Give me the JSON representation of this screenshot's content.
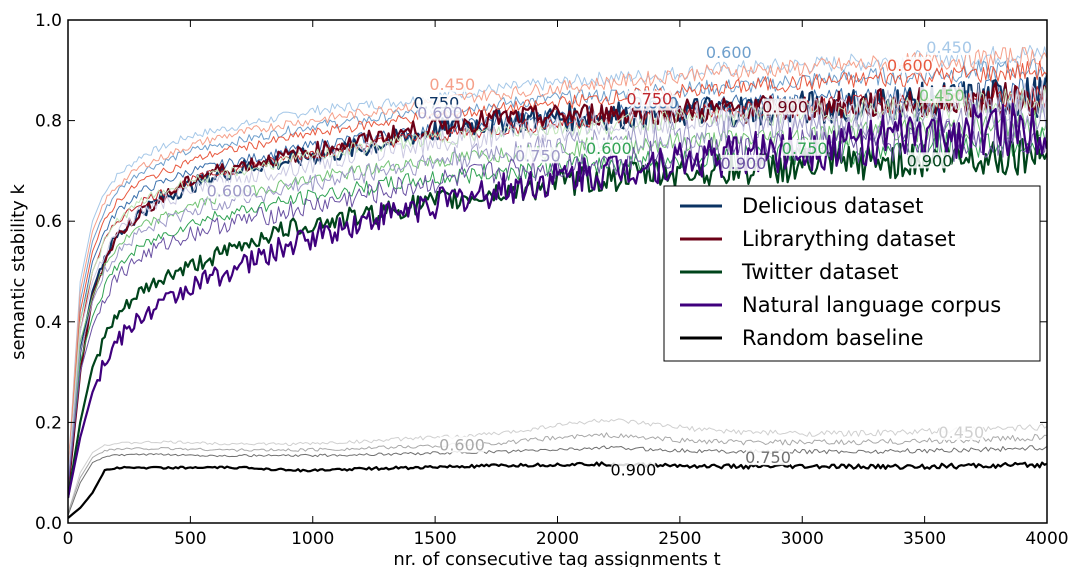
{
  "chart_data": {
    "type": "line",
    "xlabel": "nr. of consecutive tag assignments t",
    "ylabel": "semantic stability k",
    "xlim": [
      0,
      4000
    ],
    "ylim": [
      0.0,
      1.0
    ],
    "x_ticks": [
      0,
      500,
      1000,
      1500,
      2000,
      2500,
      3000,
      3500,
      4000
    ],
    "x_tick_labels": [
      "0",
      "500",
      "1000",
      "1500",
      "2000",
      "2500",
      "3000",
      "3500",
      "4000"
    ],
    "y_ticks": [
      0.0,
      0.2,
      0.4,
      0.6,
      0.8,
      1.0
    ],
    "y_tick_labels": [
      "0.0",
      "0.2",
      "0.4",
      "0.6",
      "0.8",
      "1.0"
    ],
    "grid": false,
    "legend_position": "center-right",
    "legend": [
      {
        "label": "Delicious dataset",
        "color": "#0b3363"
      },
      {
        "label": "Librarything dataset",
        "color": "#6b0016"
      },
      {
        "label": "Twitter dataset",
        "color": "#00441b"
      },
      {
        "label": "Natural language corpus",
        "color": "#3f007d"
      },
      {
        "label": "Random baseline",
        "color": "#000000"
      }
    ],
    "x": [
      0,
      50,
      100,
      150,
      200,
      300,
      400,
      500,
      600,
      700,
      800,
      900,
      1000,
      1200,
      1400,
      1600,
      1800,
      2000,
      2200,
      2400,
      2600,
      2800,
      3000,
      3200,
      3400,
      3600,
      3800,
      4000
    ],
    "series": [
      {
        "dataset": "Delicious",
        "level": "0.450",
        "color": "#a6c8e8",
        "width": 1,
        "noise": 0.006,
        "values": [
          0.1,
          0.48,
          0.6,
          0.66,
          0.69,
          0.73,
          0.75,
          0.77,
          0.78,
          0.79,
          0.8,
          0.81,
          0.82,
          0.83,
          0.84,
          0.855,
          0.865,
          0.875,
          0.885,
          0.89,
          0.9,
          0.905,
          0.91,
          0.915,
          0.92,
          0.925,
          0.93,
          0.935
        ]
      },
      {
        "dataset": "Delicious",
        "level": "0.600",
        "color": "#6e9fcc",
        "width": 1,
        "noise": 0.006,
        "values": [
          0.09,
          0.44,
          0.56,
          0.62,
          0.66,
          0.7,
          0.72,
          0.74,
          0.75,
          0.76,
          0.77,
          0.78,
          0.79,
          0.8,
          0.815,
          0.825,
          0.835,
          0.845,
          0.85,
          0.86,
          0.865,
          0.87,
          0.88,
          0.885,
          0.89,
          0.895,
          0.9,
          0.905
        ]
      },
      {
        "dataset": "Delicious",
        "level": "0.750",
        "color": "#3d72ad",
        "width": 1,
        "noise": 0.007,
        "values": [
          0.08,
          0.4,
          0.52,
          0.58,
          0.62,
          0.66,
          0.68,
          0.7,
          0.71,
          0.72,
          0.73,
          0.74,
          0.75,
          0.765,
          0.775,
          0.79,
          0.8,
          0.81,
          0.815,
          0.82,
          0.83,
          0.835,
          0.84,
          0.845,
          0.85,
          0.855,
          0.86,
          0.865
        ]
      },
      {
        "dataset": "Delicious",
        "level": "0.900",
        "color": "#0b3363",
        "width": 2.2,
        "noise": 0.012,
        "values": [
          0.06,
          0.34,
          0.46,
          0.53,
          0.57,
          0.62,
          0.65,
          0.67,
          0.69,
          0.705,
          0.715,
          0.72,
          0.73,
          0.745,
          0.77,
          0.79,
          0.8,
          0.805,
          0.81,
          0.815,
          0.82,
          0.822,
          0.825,
          0.83,
          0.835,
          0.84,
          0.845,
          0.85
        ]
      },
      {
        "dataset": "Librarything",
        "level": "0.450",
        "color": "#f5a08a",
        "width": 1,
        "noise": 0.006,
        "values": [
          0.1,
          0.46,
          0.58,
          0.64,
          0.67,
          0.71,
          0.73,
          0.75,
          0.765,
          0.775,
          0.785,
          0.795,
          0.8,
          0.815,
          0.83,
          0.845,
          0.855,
          0.865,
          0.875,
          0.885,
          0.895,
          0.9,
          0.905,
          0.91,
          0.915,
          0.92,
          0.925,
          0.93
        ]
      },
      {
        "dataset": "Librarything",
        "level": "0.600",
        "color": "#e8593f",
        "width": 1,
        "noise": 0.006,
        "values": [
          0.09,
          0.42,
          0.54,
          0.6,
          0.64,
          0.68,
          0.7,
          0.72,
          0.735,
          0.745,
          0.755,
          0.765,
          0.775,
          0.79,
          0.805,
          0.815,
          0.825,
          0.835,
          0.845,
          0.855,
          0.86,
          0.87,
          0.875,
          0.88,
          0.885,
          0.89,
          0.895,
          0.9
        ]
      },
      {
        "dataset": "Librarything",
        "level": "0.750",
        "color": "#c0272d",
        "width": 1,
        "noise": 0.007,
        "values": [
          0.08,
          0.38,
          0.5,
          0.56,
          0.6,
          0.64,
          0.66,
          0.68,
          0.695,
          0.705,
          0.715,
          0.725,
          0.735,
          0.75,
          0.765,
          0.775,
          0.785,
          0.795,
          0.805,
          0.81,
          0.815,
          0.82,
          0.825,
          0.83,
          0.835,
          0.84,
          0.845,
          0.85
        ]
      },
      {
        "dataset": "Librarything",
        "level": "0.900",
        "color": "#6b0016",
        "width": 2.2,
        "noise": 0.01,
        "values": [
          0.06,
          0.3,
          0.45,
          0.52,
          0.57,
          0.62,
          0.65,
          0.68,
          0.7,
          0.71,
          0.72,
          0.73,
          0.74,
          0.76,
          0.78,
          0.795,
          0.805,
          0.81,
          0.815,
          0.818,
          0.82,
          0.822,
          0.825,
          0.83,
          0.835,
          0.838,
          0.842,
          0.845
        ]
      },
      {
        "dataset": "Twitter",
        "level": "0.450",
        "color": "#bfe5b8",
        "width": 1,
        "noise": 0.008,
        "values": [
          0.09,
          0.4,
          0.5,
          0.56,
          0.6,
          0.64,
          0.66,
          0.68,
          0.69,
          0.7,
          0.71,
          0.72,
          0.73,
          0.745,
          0.76,
          0.77,
          0.78,
          0.785,
          0.79,
          0.8,
          0.805,
          0.81,
          0.815,
          0.82,
          0.825,
          0.83,
          0.835,
          0.84
        ]
      },
      {
        "dataset": "Twitter",
        "level": "0.600",
        "color": "#74c476",
        "width": 1,
        "noise": 0.008,
        "values": [
          0.08,
          0.36,
          0.45,
          0.51,
          0.55,
          0.59,
          0.61,
          0.63,
          0.645,
          0.655,
          0.665,
          0.675,
          0.685,
          0.7,
          0.715,
          0.725,
          0.735,
          0.745,
          0.75,
          0.755,
          0.76,
          0.765,
          0.77,
          0.775,
          0.78,
          0.785,
          0.79,
          0.795
        ]
      },
      {
        "dataset": "Twitter",
        "level": "0.750",
        "color": "#31a354",
        "width": 1,
        "noise": 0.009,
        "values": [
          0.07,
          0.32,
          0.41,
          0.47,
          0.51,
          0.55,
          0.575,
          0.595,
          0.61,
          0.62,
          0.63,
          0.64,
          0.65,
          0.665,
          0.68,
          0.69,
          0.7,
          0.71,
          0.715,
          0.72,
          0.725,
          0.73,
          0.735,
          0.74,
          0.745,
          0.75,
          0.755,
          0.76
        ]
      },
      {
        "dataset": "Twitter",
        "level": "0.900",
        "color": "#00441b",
        "width": 2.2,
        "noise": 0.012,
        "values": [
          0.05,
          0.2,
          0.31,
          0.37,
          0.41,
          0.46,
          0.49,
          0.51,
          0.53,
          0.55,
          0.57,
          0.585,
          0.595,
          0.61,
          0.63,
          0.645,
          0.66,
          0.675,
          0.685,
          0.695,
          0.7,
          0.705,
          0.71,
          0.715,
          0.72,
          0.725,
          0.73,
          0.74
        ]
      },
      {
        "dataset": "Natural language corpus",
        "level": "0.450",
        "color": "#cbc9e2",
        "width": 1,
        "noise": 0.012,
        "values": [
          0.09,
          0.38,
          0.48,
          0.54,
          0.58,
          0.62,
          0.64,
          0.66,
          0.675,
          0.685,
          0.695,
          0.705,
          0.715,
          0.735,
          0.75,
          0.765,
          0.775,
          0.785,
          0.795,
          0.8,
          0.805,
          0.81,
          0.815,
          0.82,
          0.825,
          0.83,
          0.835,
          0.84
        ]
      },
      {
        "dataset": "Natural language corpus",
        "level": "0.600",
        "color": "#9e9ac8",
        "width": 1,
        "noise": 0.012,
        "values": [
          0.08,
          0.34,
          0.44,
          0.5,
          0.54,
          0.58,
          0.6,
          0.62,
          0.635,
          0.645,
          0.655,
          0.665,
          0.675,
          0.695,
          0.71,
          0.725,
          0.74,
          0.75,
          0.76,
          0.77,
          0.775,
          0.78,
          0.785,
          0.79,
          0.795,
          0.8,
          0.805,
          0.81
        ]
      },
      {
        "dataset": "Natural language corpus",
        "level": "0.750",
        "color": "#6a51a3",
        "width": 1,
        "noise": 0.013,
        "values": [
          0.07,
          0.3,
          0.39,
          0.45,
          0.49,
          0.53,
          0.555,
          0.575,
          0.59,
          0.6,
          0.61,
          0.62,
          0.63,
          0.65,
          0.67,
          0.685,
          0.7,
          0.71,
          0.72,
          0.73,
          0.735,
          0.74,
          0.745,
          0.75,
          0.755,
          0.76,
          0.77,
          0.78
        ]
      },
      {
        "dataset": "Natural language corpus",
        "level": "0.900",
        "color": "#3f007d",
        "width": 2.2,
        "noise": 0.016,
        "values": [
          0.05,
          0.17,
          0.26,
          0.32,
          0.36,
          0.41,
          0.44,
          0.47,
          0.49,
          0.51,
          0.53,
          0.55,
          0.57,
          0.6,
          0.625,
          0.645,
          0.665,
          0.685,
          0.7,
          0.715,
          0.725,
          0.735,
          0.745,
          0.755,
          0.765,
          0.775,
          0.785,
          0.79
        ]
      },
      {
        "dataset": "Random baseline",
        "level": "0.450",
        "color": "#d0d0d0",
        "width": 1,
        "noise": 0.002,
        "values": [
          0.02,
          0.1,
          0.14,
          0.155,
          0.158,
          0.16,
          0.161,
          0.16,
          0.158,
          0.158,
          0.157,
          0.157,
          0.158,
          0.162,
          0.168,
          0.172,
          0.18,
          0.195,
          0.205,
          0.195,
          0.185,
          0.18,
          0.178,
          0.178,
          0.18,
          0.183,
          0.187,
          0.192
        ]
      },
      {
        "dataset": "Random baseline",
        "level": "0.600",
        "color": "#a9a9a9",
        "width": 1,
        "noise": 0.002,
        "values": [
          0.02,
          0.09,
          0.13,
          0.145,
          0.147,
          0.148,
          0.148,
          0.147,
          0.146,
          0.145,
          0.145,
          0.145,
          0.146,
          0.148,
          0.152,
          0.155,
          0.16,
          0.17,
          0.175,
          0.168,
          0.162,
          0.16,
          0.16,
          0.16,
          0.162,
          0.164,
          0.167,
          0.17
        ]
      },
      {
        "dataset": "Random baseline",
        "level": "0.750",
        "color": "#707070",
        "width": 1,
        "noise": 0.0015,
        "values": [
          0.015,
          0.08,
          0.12,
          0.132,
          0.135,
          0.136,
          0.136,
          0.135,
          0.134,
          0.134,
          0.134,
          0.134,
          0.134,
          0.136,
          0.138,
          0.14,
          0.142,
          0.146,
          0.15,
          0.146,
          0.143,
          0.142,
          0.142,
          0.142,
          0.143,
          0.145,
          0.147,
          0.15
        ]
      },
      {
        "dataset": "Random baseline",
        "level": "0.900",
        "color": "#000000",
        "width": 2.2,
        "noise": 0.0015,
        "values": [
          0.01,
          0.03,
          0.06,
          0.105,
          0.11,
          0.11,
          0.11,
          0.11,
          0.11,
          0.11,
          0.108,
          0.106,
          0.104,
          0.108,
          0.11,
          0.112,
          0.114,
          0.116,
          0.117,
          0.115,
          0.113,
          0.112,
          0.112,
          0.112,
          0.112,
          0.113,
          0.114,
          0.115
        ]
      }
    ],
    "contour_labels": [
      {
        "text": "0.450",
        "x": 1570,
        "y": 0.867,
        "color": "#f5a08a"
      },
      {
        "text": "0.600",
        "x": 2400,
        "y": 0.83,
        "color": "#3d72ad"
      },
      {
        "text": "0.750",
        "x": 1505,
        "y": 0.83,
        "color": "#0b3363"
      },
      {
        "text": "0.750",
        "x": 2375,
        "y": 0.838,
        "color": "#c0272d"
      },
      {
        "text": "0.900",
        "x": 2930,
        "y": 0.822,
        "color": "#6b0016"
      },
      {
        "text": "0.450",
        "x": 3600,
        "y": 0.94,
        "color": "#a6c8e8"
      },
      {
        "text": "0.600",
        "x": 3440,
        "y": 0.905,
        "color": "#e8593f"
      },
      {
        "text": "0.600",
        "x": 2700,
        "y": 0.93,
        "color": "#6e9fcc"
      },
      {
        "text": "0.600",
        "x": 1520,
        "y": 0.81,
        "color": "#9e9ac8"
      },
      {
        "text": "0.600",
        "x": 660,
        "y": 0.655,
        "color": "#9e9ac8"
      },
      {
        "text": "0.750",
        "x": 1920,
        "y": 0.725,
        "color": "#9e9ac8"
      },
      {
        "text": "0.600",
        "x": 2210,
        "y": 0.74,
        "color": "#31a354"
      },
      {
        "text": "0.900",
        "x": 2760,
        "y": 0.71,
        "color": "#6a51a3"
      },
      {
        "text": "0.750",
        "x": 3010,
        "y": 0.74,
        "color": "#31a354"
      },
      {
        "text": "0.900",
        "x": 3520,
        "y": 0.715,
        "color": "#00441b"
      },
      {
        "text": "0.450",
        "x": 3570,
        "y": 0.845,
        "color": "#74c476"
      },
      {
        "text": "0.600",
        "x": 1610,
        "y": 0.15,
        "color": "#a9a9a9"
      },
      {
        "text": "0.450",
        "x": 3650,
        "y": 0.175,
        "color": "#d0d0d0"
      },
      {
        "text": "0.750",
        "x": 2860,
        "y": 0.125,
        "color": "#707070"
      },
      {
        "text": "0.900",
        "x": 2310,
        "y": 0.1,
        "color": "#000000"
      }
    ]
  }
}
